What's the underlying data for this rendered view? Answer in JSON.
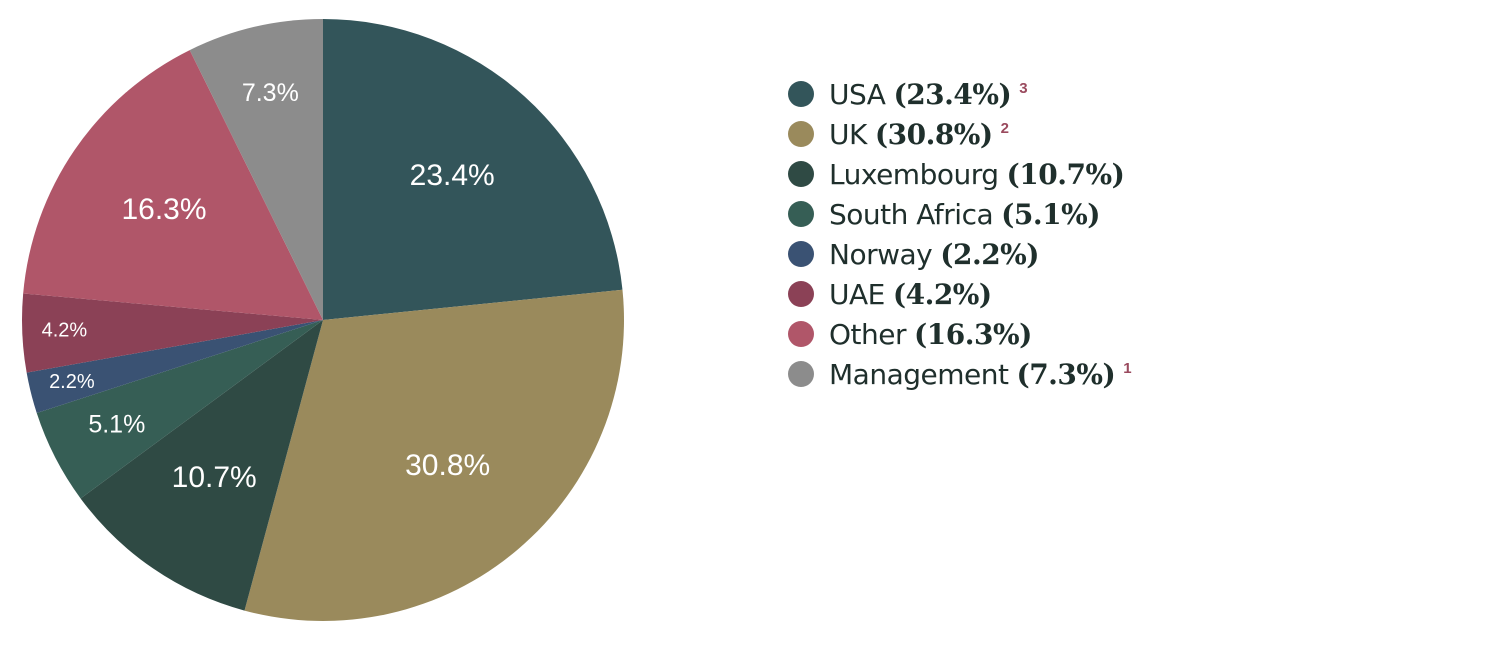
{
  "chart_data": {
    "type": "pie",
    "categories": [
      "USA",
      "UK",
      "Luxembourg",
      "South Africa",
      "Norway",
      "UAE",
      "Other",
      "Management"
    ],
    "values": [
      23.4,
      30.8,
      10.7,
      5.1,
      2.2,
      4.2,
      16.3,
      7.3
    ],
    "value_labels": [
      "23.4%",
      "30.8%",
      "10.7%",
      "5.1%",
      "2.2%",
      "4.2%",
      "16.3%",
      "7.3%"
    ],
    "legend_value_labels": [
      "(23.4%)",
      "(30.8%)",
      "(10.7%)",
      "(5.1%)",
      "(2.2%)",
      "(4.2%)",
      "(16.3%)",
      "(7.3%)"
    ],
    "legend_notes": [
      "3",
      "2",
      null,
      null,
      null,
      null,
      null,
      "1"
    ],
    "colors": [
      "#33555a",
      "#9a8a5c",
      "#2f4a44",
      "#365e55",
      "#3a5273",
      "#8b4156",
      "#b05669",
      "#8c8c8c"
    ]
  }
}
